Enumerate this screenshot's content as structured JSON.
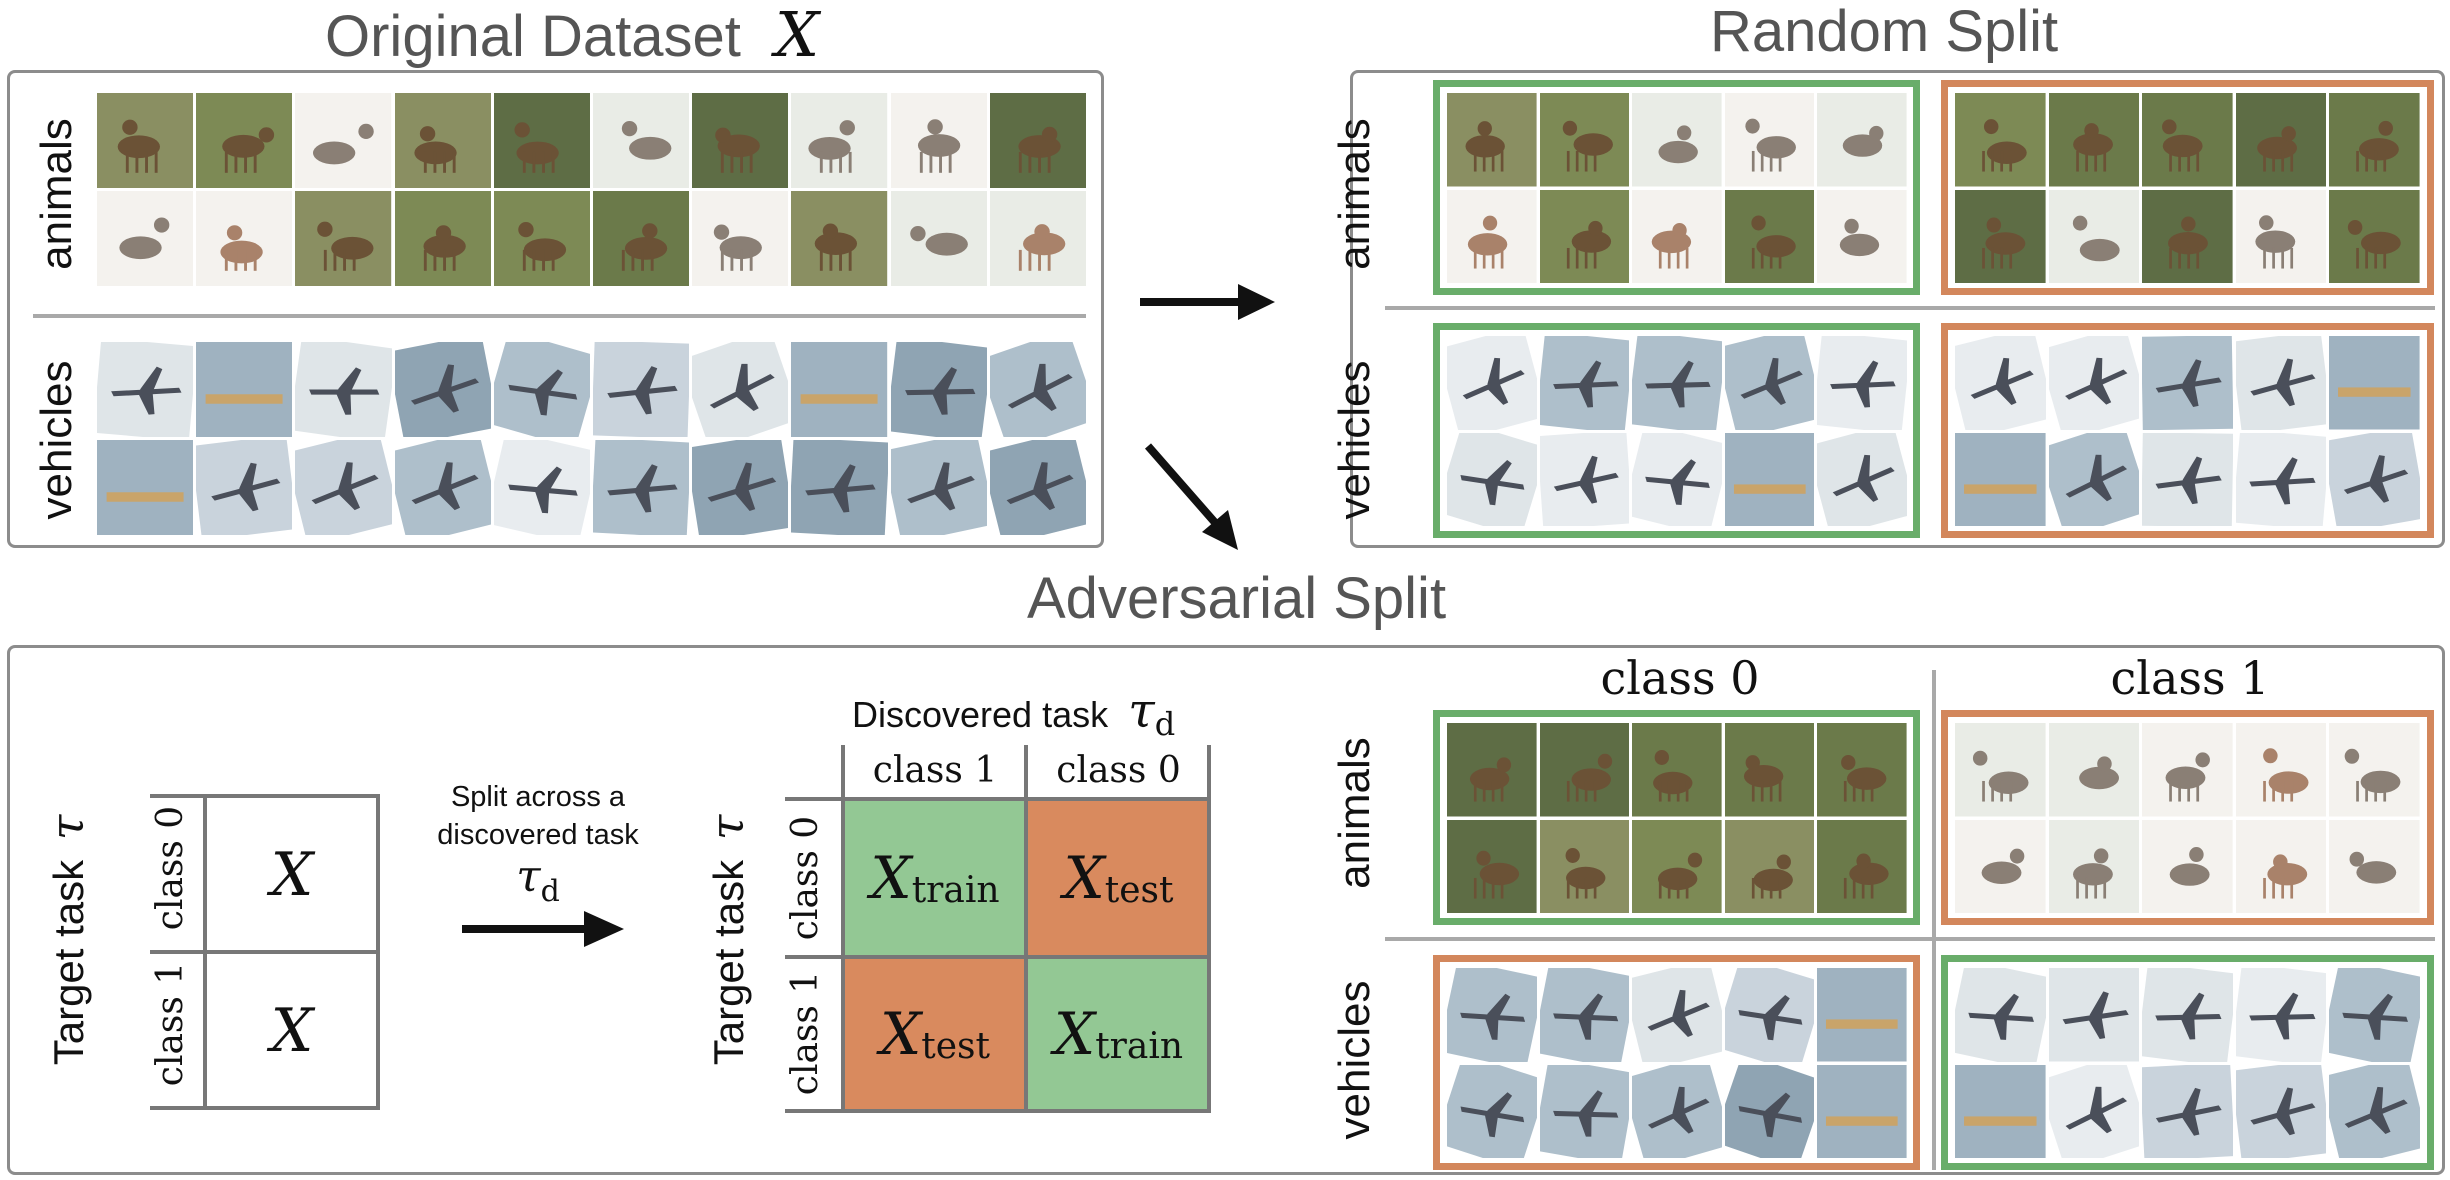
{
  "titles": {
    "original": "Original Dataset",
    "original_symbol": "X",
    "random": "Random Split",
    "adversarial": "Adversarial Split"
  },
  "row_labels": {
    "animals": "animals",
    "vehicles": "vehicles"
  },
  "left_matrix": {
    "axis_label": "Target task",
    "axis_symbol": "τ",
    "row0": "class 0",
    "row1": "class 1",
    "cell": "X"
  },
  "arrow_caption": {
    "line1": "Split across a",
    "line2": "discovered task",
    "symbol": "τ",
    "symbol_sub": "d"
  },
  "right_matrix": {
    "header": "Discovered task",
    "header_symbol": "τ",
    "header_sub": "d",
    "col_a": "class 1",
    "col_b": "class 0",
    "axis_label": "Target task",
    "axis_symbol": "τ",
    "row0": "class 0",
    "row1": "class 1",
    "x": "X",
    "train": "train",
    "test": "test"
  },
  "adv_columns": {
    "c0": "class 0",
    "c1": "class 1"
  },
  "colors": {
    "train_green": "#69ad6a",
    "test_orange": "#d3875c",
    "train_fill": "#93c894",
    "test_fill": "#d98a5e",
    "title_gray": "#555555"
  },
  "thumbnails": {
    "animals": [
      "deer",
      "deer",
      "cat",
      "deer",
      "deer",
      "cat",
      "deer",
      "reindeer",
      "reindeer",
      "deer",
      "cat",
      "horse",
      "deer",
      "deer",
      "deer",
      "deer",
      "reindeer",
      "deer",
      "cat",
      "horse"
    ],
    "vehicles": [
      "airplane",
      "ship",
      "airplane",
      "airplane",
      "airplane",
      "airplane",
      "airplane",
      "ship",
      "airplane",
      "airplane",
      "ship",
      "airplane",
      "airplane",
      "airplane",
      "airplane",
      "airplane",
      "airplane",
      "airplane",
      "airplane",
      "airplane"
    ]
  }
}
